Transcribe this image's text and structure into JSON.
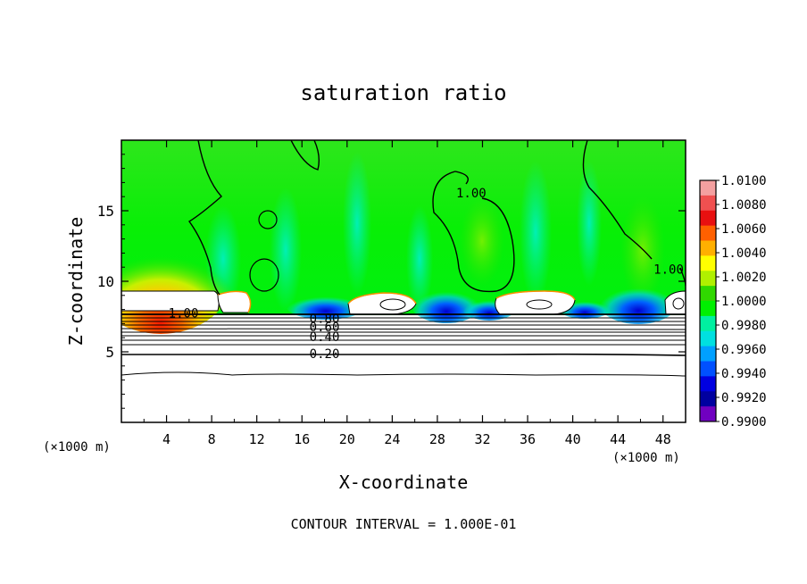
{
  "chart_data": {
    "type": "heatmap",
    "title": "saturation ratio",
    "xlabel": "X-coordinate",
    "ylabel": "Z-coordinate",
    "x_unit_left": "(×1000 m)",
    "x_unit_right": "(×1000 m)",
    "footer": "CONTOUR INTERVAL = 1.000E-01",
    "xlim": [
      0,
      50
    ],
    "ylim": [
      0,
      20
    ],
    "x_ticks": [
      4,
      8,
      12,
      16,
      20,
      24,
      28,
      32,
      36,
      40,
      44,
      48
    ],
    "y_ticks": [
      5,
      10,
      15
    ],
    "colorbar": {
      "range": [
        0.99,
        1.01
      ],
      "labels": [
        "1.0100",
        "1.0080",
        "1.0060",
        "1.0040",
        "1.0020",
        "1.0000",
        "0.9980",
        "0.9960",
        "0.9940",
        "0.9920",
        "0.9900"
      ],
      "colors": [
        "#f4a0a0",
        "#f05050",
        "#e81010",
        "#ff6000",
        "#ffb000",
        "#ffff00",
        "#b0f000",
        "#30d800",
        "#00f000",
        "#00f0a0",
        "#00e0e0",
        "#00a0ff",
        "#0050ff",
        "#0000e0",
        "#0000a0",
        "#7000c0"
      ]
    },
    "contour_labels": [
      {
        "text": "1.00",
        "x": 5.5,
        "z": 7.7
      },
      {
        "text": "1.00",
        "x": 31,
        "z": 16.2
      },
      {
        "text": "1.00",
        "x": 48.5,
        "z": 10.8
      },
      {
        "text": "0.80",
        "x": 18,
        "z": 7.3
      },
      {
        "text": "0.60",
        "x": 18,
        "z": 6.7
      },
      {
        "text": "0.40",
        "x": 18,
        "z": 6.0
      },
      {
        "text": "0.20",
        "x": 18,
        "z": 4.8
      }
    ]
  }
}
